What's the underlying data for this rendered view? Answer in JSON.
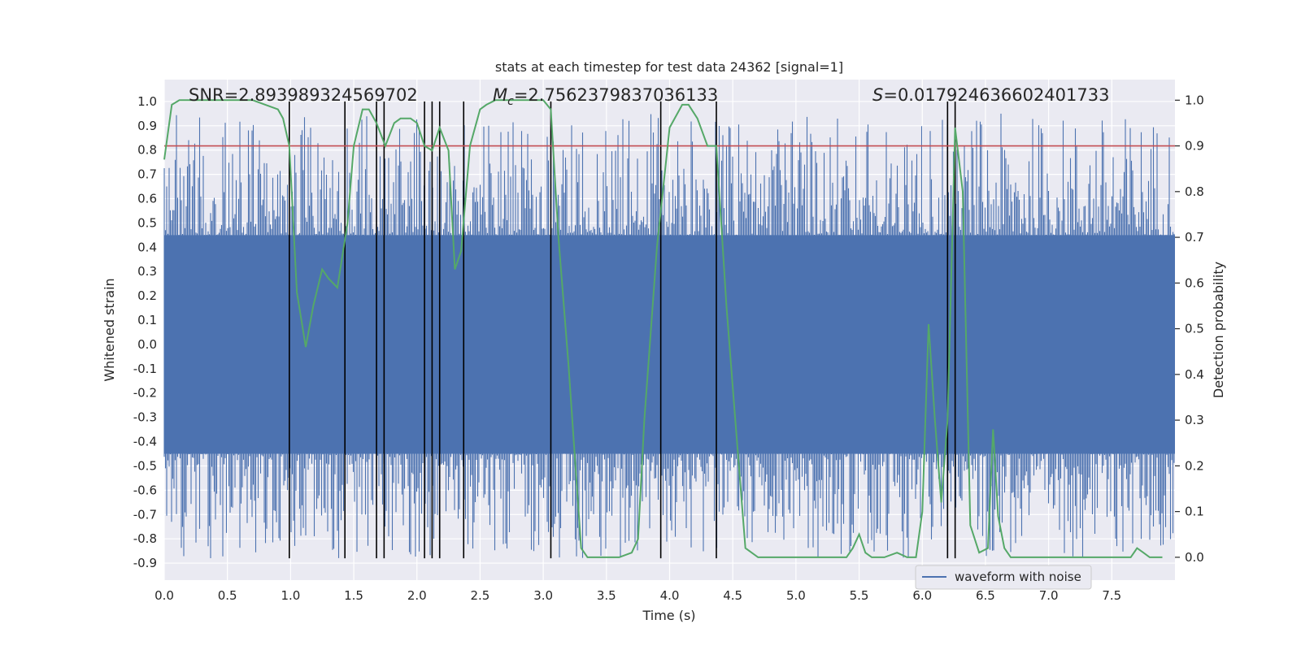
{
  "chart_data": {
    "type": "line",
    "title": "stats at each timestep for test data 24362 [signal=1]",
    "xlabel": "Time (s)",
    "ylabel_left": "Whitened strain",
    "ylabel_right": "Detection probability",
    "xlim": [
      0.0,
      8.0
    ],
    "ylim_left": [
      -0.97,
      1.09
    ],
    "ylim_right": [
      -0.05,
      1.045
    ],
    "xticks": [
      "0.0",
      "0.5",
      "1.0",
      "1.5",
      "2.0",
      "2.5",
      "3.0",
      "3.5",
      "4.0",
      "4.5",
      "5.0",
      "5.5",
      "6.0",
      "6.5",
      "7.0",
      "7.5"
    ],
    "yticks_left": [
      "1.0",
      "0.9",
      "0.8",
      "0.7",
      "0.6",
      "0.5",
      "0.4",
      "0.3",
      "0.2",
      "0.1",
      "0.0",
      "-0.1",
      "-0.2",
      "-0.3",
      "-0.4",
      "-0.5",
      "-0.6",
      "-0.7",
      "-0.8",
      "-0.9"
    ],
    "yticks_right": [
      "1.0",
      "0.9",
      "0.8",
      "0.7",
      "0.6",
      "0.5",
      "0.4",
      "0.3",
      "0.2",
      "0.1",
      "0.0"
    ],
    "annotations": {
      "snr": "SNR=2.893989324569702",
      "mc_symbol": "M",
      "mc_sub": "c",
      "mc_value": "=2.7562379837036133",
      "s_symbol": "S",
      "s_value": "=0.017924636602401733"
    },
    "legend": {
      "label": "waveform with noise",
      "location": "lower-right"
    },
    "threshold": {
      "value": 0.9,
      "axis": "right",
      "color": "#c44e52"
    },
    "vertical_markers": {
      "x": [
        0.99,
        1.43,
        1.68,
        1.74,
        2.06,
        2.12,
        2.18,
        2.37,
        3.06,
        3.93,
        4.37,
        6.2,
        6.26
      ],
      "y_range_left": [
        -0.88,
        1.0
      ],
      "color": "#000000"
    },
    "series": [
      {
        "name": "waveform with noise",
        "axis": "left",
        "color": "#4c72b0",
        "style": "noise",
        "envelope_positive": 0.45,
        "envelope_negative": -0.45,
        "peak_range": [
          -0.88,
          1.0
        ]
      },
      {
        "name": "detection probability",
        "axis": "right",
        "color": "#55a868",
        "x": [
          0.0,
          0.06,
          0.12,
          0.2,
          0.3,
          0.4,
          0.5,
          0.6,
          0.7,
          0.8,
          0.9,
          0.94,
          0.99,
          1.05,
          1.12,
          1.18,
          1.25,
          1.3,
          1.37,
          1.45,
          1.5,
          1.57,
          1.62,
          1.68,
          1.75,
          1.82,
          1.87,
          1.95,
          2.0,
          2.06,
          2.12,
          2.18,
          2.25,
          2.3,
          2.35,
          2.42,
          2.5,
          2.55,
          2.62,
          2.7,
          2.8,
          2.9,
          3.0,
          3.06,
          3.12,
          3.2,
          3.3,
          3.35,
          3.4,
          3.5,
          3.6,
          3.7,
          3.75,
          3.8,
          3.9,
          4.0,
          4.1,
          4.15,
          4.22,
          4.3,
          4.37,
          4.45,
          4.52,
          4.6,
          4.7,
          4.8,
          4.9,
          5.0,
          5.1,
          5.2,
          5.3,
          5.4,
          5.45,
          5.5,
          5.55,
          5.6,
          5.7,
          5.8,
          5.88,
          5.95,
          6.0,
          6.05,
          6.1,
          6.15,
          6.2,
          6.26,
          6.32,
          6.38,
          6.45,
          6.52,
          6.56,
          6.6,
          6.65,
          6.7,
          6.8,
          6.9,
          7.0,
          7.1,
          7.2,
          7.3,
          7.4,
          7.5,
          7.6,
          7.65,
          7.7,
          7.75,
          7.8,
          7.9
        ],
        "y": [
          0.87,
          0.99,
          1.0,
          1.0,
          1.0,
          1.0,
          1.0,
          1.0,
          1.0,
          0.99,
          0.98,
          0.96,
          0.9,
          0.58,
          0.46,
          0.55,
          0.63,
          0.61,
          0.59,
          0.73,
          0.9,
          0.98,
          0.98,
          0.95,
          0.9,
          0.95,
          0.96,
          0.96,
          0.95,
          0.9,
          0.89,
          0.94,
          0.89,
          0.63,
          0.67,
          0.9,
          0.98,
          0.99,
          1.0,
          1.0,
          1.0,
          1.0,
          1.0,
          0.98,
          0.7,
          0.42,
          0.02,
          0.0,
          0.0,
          0.0,
          0.0,
          0.01,
          0.04,
          0.3,
          0.68,
          0.94,
          0.99,
          0.99,
          0.96,
          0.9,
          0.9,
          0.55,
          0.3,
          0.02,
          0.0,
          0.0,
          0.0,
          0.0,
          0.0,
          0.0,
          0.0,
          0.0,
          0.02,
          0.05,
          0.01,
          0.0,
          0.0,
          0.01,
          0.0,
          0.0,
          0.1,
          0.51,
          0.3,
          0.12,
          0.3,
          0.94,
          0.8,
          0.07,
          0.01,
          0.02,
          0.28,
          0.09,
          0.02,
          0.0,
          0.0,
          0.0,
          0.0,
          0.0,
          0.0,
          0.0,
          0.0,
          0.0,
          0.0,
          0.0,
          0.02,
          0.01,
          0.0,
          0.0
        ]
      }
    ]
  }
}
